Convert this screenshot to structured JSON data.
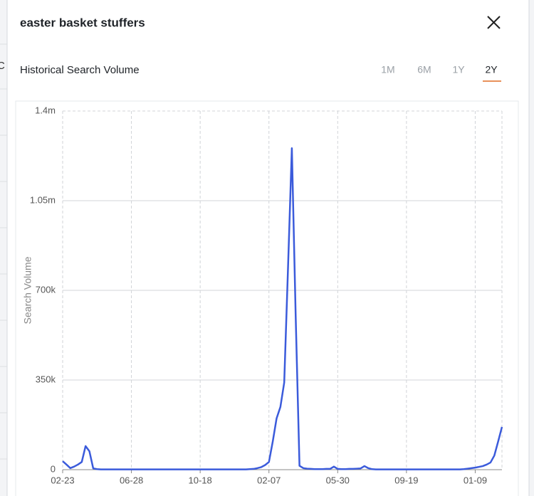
{
  "background": {
    "fragment": "C"
  },
  "header": {
    "title": "easter basket stuffers"
  },
  "controls": {
    "ranges": [
      "1M",
      "6M",
      "1Y",
      "2Y"
    ],
    "active_range": 3,
    "active_underline": "#e8915a"
  },
  "chart_data": {
    "type": "line",
    "title": "Historical Search Volume",
    "ylabel": "Search Volume",
    "categories": [
      "02-23",
      null,
      null,
      null,
      null,
      null,
      null,
      null,
      null,
      null,
      null,
      null,
      null,
      null,
      null,
      null,
      null,
      null,
      "06-28",
      null,
      null,
      null,
      null,
      null,
      null,
      null,
      null,
      null,
      null,
      null,
      null,
      null,
      null,
      null,
      null,
      null,
      "10-18",
      null,
      null,
      null,
      null,
      null,
      null,
      null,
      null,
      null,
      null,
      null,
      null,
      null,
      null,
      null,
      null,
      null,
      "02-07",
      null,
      null,
      null,
      null,
      null,
      null,
      null,
      null,
      null,
      null,
      null,
      null,
      null,
      null,
      null,
      null,
      null,
      "05-30",
      null,
      null,
      null,
      null,
      null,
      null,
      null,
      null,
      null,
      null,
      null,
      null,
      null,
      null,
      null,
      null,
      null,
      "09-19",
      null,
      null,
      null,
      null,
      null,
      null,
      null,
      null,
      null,
      null,
      null,
      null,
      null,
      null,
      null,
      null,
      null,
      "01-09",
      null,
      null,
      null,
      null,
      null,
      null,
      null
    ],
    "values": [
      33000,
      20000,
      6000,
      12000,
      20000,
      30000,
      92000,
      72000,
      5000,
      2000,
      1000,
      1000,
      1000,
      1000,
      1000,
      1000,
      1000,
      1000,
      1000,
      1000,
      1000,
      1000,
      1000,
      1000,
      1000,
      1000,
      1000,
      1000,
      1000,
      1000,
      1000,
      1000,
      1000,
      1000,
      1000,
      1000,
      1000,
      1000,
      1000,
      1000,
      1000,
      1000,
      1000,
      1000,
      1000,
      1000,
      1000,
      1000,
      1000,
      2000,
      3000,
      6000,
      10000,
      18000,
      30000,
      110000,
      200000,
      245000,
      340000,
      790000,
      1255000,
      600000,
      15000,
      6000,
      4000,
      3000,
      2000,
      2000,
      2000,
      3000,
      3000,
      12000,
      3000,
      2000,
      2000,
      3000,
      3000,
      4000,
      5000,
      14000,
      6000,
      2000,
      1000,
      1000,
      1000,
      1000,
      1000,
      1000,
      1000,
      1000,
      1000,
      1000,
      1000,
      1000,
      1000,
      1000,
      1000,
      1000,
      1000,
      1000,
      1000,
      1000,
      1000,
      1000,
      1000,
      2000,
      4000,
      6000,
      8000,
      11000,
      14000,
      20000,
      28000,
      55000,
      110000,
      167000
    ],
    "color": "#3b5bdb",
    "ylim": [
      0,
      1400000
    ],
    "yticks": [
      0,
      {
        "value": 350000,
        "label": "350k"
      },
      {
        "value": 700000,
        "label": "700k"
      },
      {
        "value": 1050000,
        "label": "1.05m"
      },
      {
        "value": 1400000,
        "label": "1.4m"
      }
    ],
    "grid": true
  }
}
